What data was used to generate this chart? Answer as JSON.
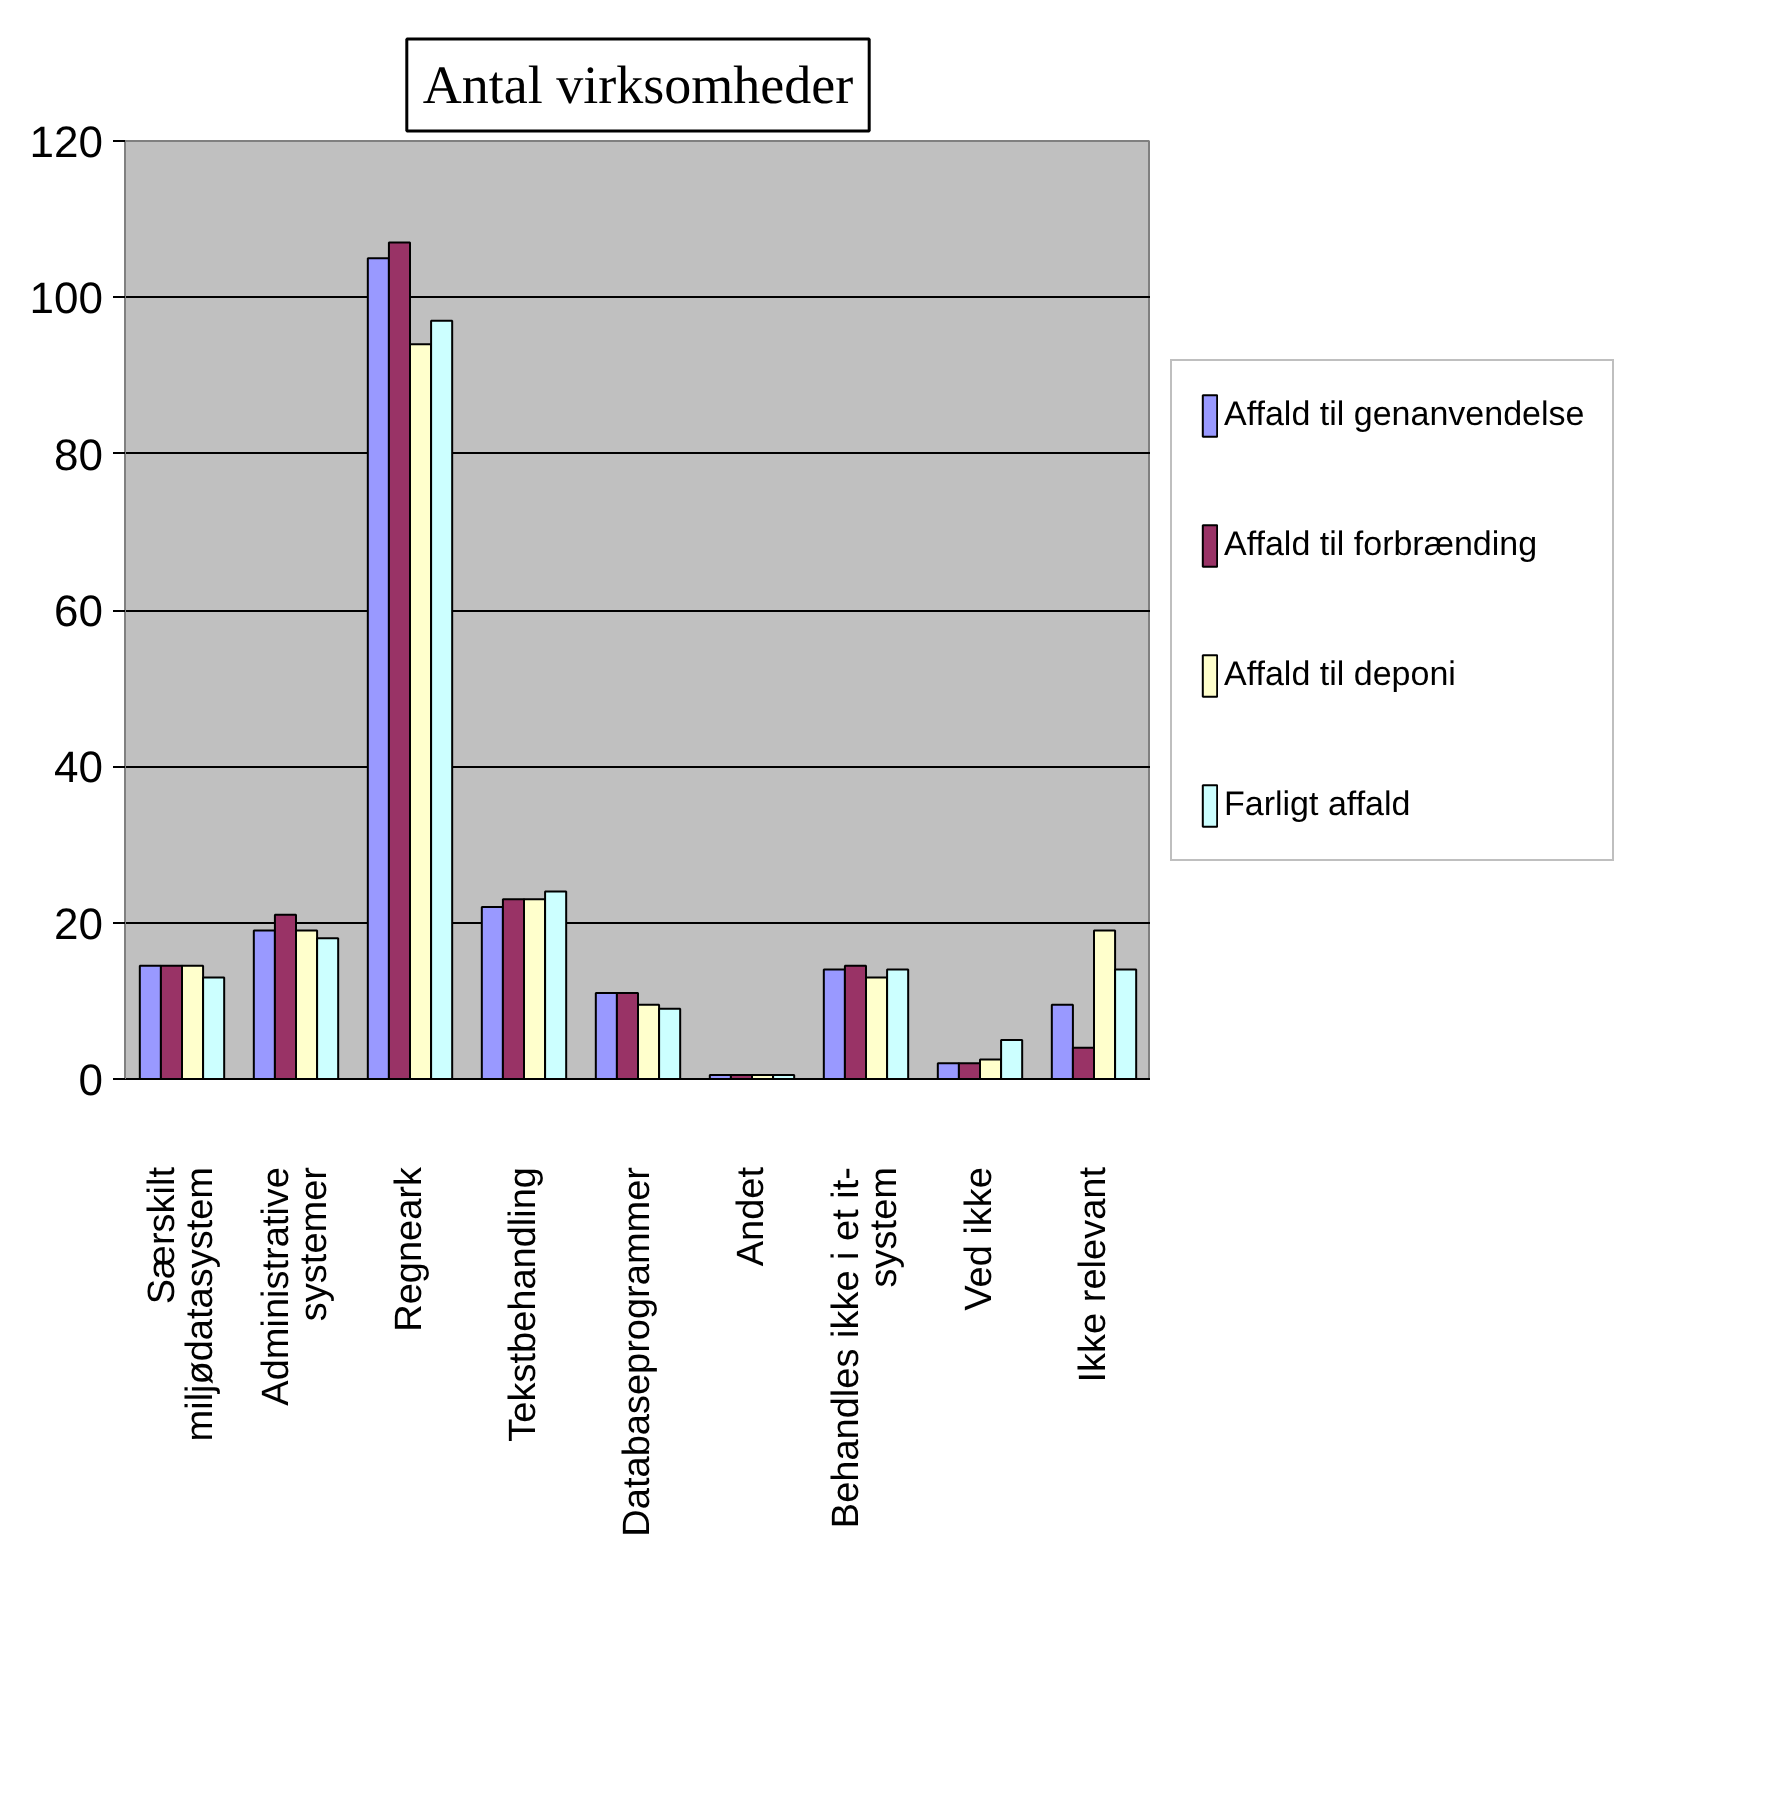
{
  "chart_data": {
    "type": "bar",
    "title": "Antal virksomheder",
    "categories": [
      "Særskilt\nmiljødatasystem",
      "Administrative\nsystemer",
      "Regneark",
      "Tekstbehandling",
      "Databaseprogrammer",
      "Andet",
      "Behandles ikke i et it-\nsystem",
      "Ved ikke",
      "Ikke relevant"
    ],
    "series": [
      {
        "name": "Affald til genanvendelse",
        "color": "#9999ff",
        "values": [
          14.5,
          19,
          105,
          22,
          11,
          0.5,
          14,
          2,
          9.5
        ]
      },
      {
        "name": "Affald til forbrænding",
        "color": "#993366",
        "values": [
          14.5,
          21,
          107,
          23,
          11,
          0.5,
          14.5,
          2,
          4
        ]
      },
      {
        "name": "Affald til deponi",
        "color": "#ffffcc",
        "values": [
          14.5,
          19,
          94,
          23,
          9.5,
          0.5,
          13,
          2.5,
          19
        ]
      },
      {
        "name": "Farligt affald",
        "color": "#ccffff",
        "values": [
          13,
          18,
          97,
          24,
          9,
          0.5,
          14,
          5,
          14
        ]
      }
    ],
    "ylim": [
      0,
      120
    ],
    "yticks": [
      0,
      20,
      40,
      60,
      80,
      100,
      120
    ],
    "grid": "y",
    "legend": "right"
  }
}
